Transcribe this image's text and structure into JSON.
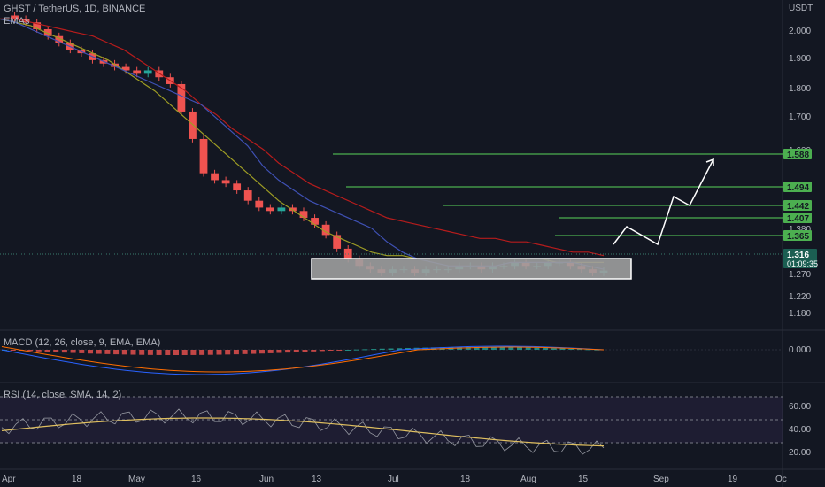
{
  "chart_data": {
    "type": "candlestick",
    "pair_title": "GHST / TetherUS, 1D, BINANCE",
    "ema_legend": "EMAs",
    "quote_unit": "USDT",
    "y_ticks": [
      "2.000",
      "1.900",
      "1.800",
      "1.700",
      "1.600",
      "1.380",
      "1.270",
      "1.220",
      "1.180"
    ],
    "x_ticks": [
      "Apr",
      "18",
      "May",
      "16",
      "Jun",
      "13",
      "Jul",
      "18",
      "Aug",
      "15",
      "Sep",
      "19",
      "Oc"
    ],
    "current_price": "1.316",
    "countdown": "01:09:35",
    "resistance_levels": [
      "1.588",
      "1.494",
      "1.442",
      "1.407",
      "1.365"
    ],
    "price_series": [
      2.06,
      2.05,
      2.04,
      2.02,
      2.0,
      1.98,
      1.96,
      1.95,
      1.93,
      1.92,
      1.91,
      1.9,
      1.89,
      1.9,
      1.88,
      1.86,
      1.78,
      1.7,
      1.6,
      1.58,
      1.57,
      1.55,
      1.52,
      1.5,
      1.49,
      1.5,
      1.49,
      1.47,
      1.45,
      1.42,
      1.38,
      1.35,
      1.33,
      1.32,
      1.31,
      1.32,
      1.32,
      1.31,
      1.32,
      1.32,
      1.32,
      1.33,
      1.33,
      1.32,
      1.33,
      1.33,
      1.34,
      1.33,
      1.33,
      1.34,
      1.34,
      1.33,
      1.32,
      1.31,
      1.316
    ],
    "ema_fast": [
      2.05,
      2.04,
      2.02,
      2.0,
      1.98,
      1.96,
      1.94,
      1.92,
      1.9,
      1.88,
      1.86,
      1.84,
      1.82,
      1.8,
      1.76,
      1.72,
      1.68,
      1.62,
      1.58,
      1.55,
      1.52,
      1.5,
      1.48,
      1.46,
      1.44,
      1.4,
      1.37,
      1.35,
      1.34,
      1.33,
      1.33,
      1.33,
      1.33,
      1.34,
      1.34,
      1.34,
      1.34,
      1.34,
      1.33,
      1.32
    ],
    "ema_mid": [
      2.05,
      2.04,
      2.03,
      2.01,
      1.99,
      1.97,
      1.95,
      1.93,
      1.9,
      1.87,
      1.84,
      1.8,
      1.76,
      1.72,
      1.68,
      1.64,
      1.6,
      1.56,
      1.52,
      1.49,
      1.46,
      1.43,
      1.41,
      1.39,
      1.37,
      1.36,
      1.36,
      1.35,
      1.35,
      1.35,
      1.35,
      1.35,
      1.35,
      1.35,
      1.35,
      1.35,
      1.34,
      1.34,
      1.34,
      1.34
    ],
    "ema_slow": [
      2.05,
      2.05,
      2.04,
      2.03,
      2.02,
      2.01,
      2.0,
      1.98,
      1.96,
      1.93,
      1.9,
      1.87,
      1.84,
      1.8,
      1.77,
      1.73,
      1.7,
      1.67,
      1.63,
      1.6,
      1.57,
      1.55,
      1.53,
      1.51,
      1.49,
      1.47,
      1.46,
      1.45,
      1.44,
      1.43,
      1.42,
      1.41,
      1.41,
      1.4,
      1.4,
      1.39,
      1.38,
      1.37,
      1.37,
      1.36
    ],
    "projection_path": [
      1.35,
      1.39,
      1.36,
      1.45,
      1.44,
      1.57
    ],
    "macd_legend": "MACD (12, 26, close, 9, EMA, EMA)",
    "macd_ticks": [
      "0.000"
    ],
    "rsi_legend": "RSI (14, close, SMA, 14, 2)",
    "rsi_ticks": [
      "60.00",
      "40.00",
      "20.00"
    ],
    "colors": {
      "background": "#131722",
      "up": "#26a69a",
      "down": "#ef5350",
      "resistance": "#4caf50",
      "ema_fast": "#3f51b5",
      "ema_mid": "#2e7d32",
      "ema_slow": "#b71c1c",
      "ema_long": "#9e9d24",
      "projection": "#ffffff",
      "rsi": "#7e57c2",
      "macd": "#2962ff",
      "signal": "#ff6d00"
    }
  }
}
